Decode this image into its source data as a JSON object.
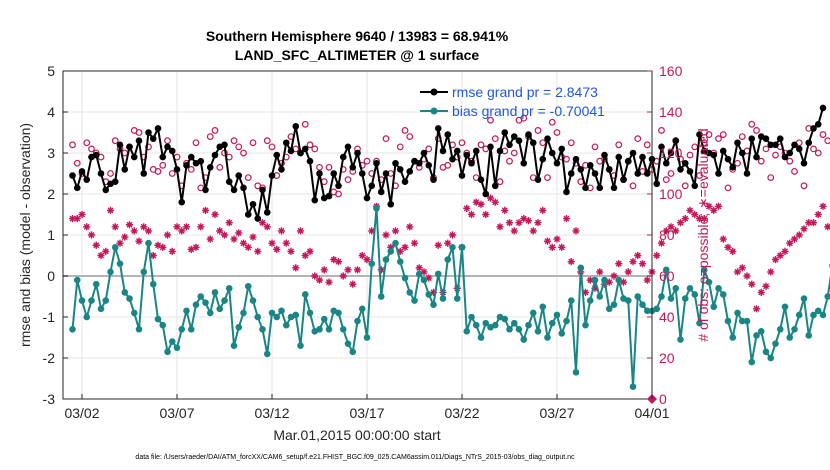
{
  "chart_data": {
    "type": "line",
    "title": "Southern Hemisphere 9640 / 13983 = 68.941%",
    "subtitle": "LAND_SFC_ALTIMETER @ 1 surface",
    "xlabel": "Mar.01,2015 00:00:00 start",
    "ylabel": "rmse and bias (model - observation)",
    "ylabel_right": "# of obs: o=possible; ∗=evaluated",
    "footer": "data file: /Users/raeder/DAI/ATM_forcXX/CAM6_setup/f.e21.FHIST_BGC.f09_025.CAM6assim.011/Diags_NTrS_2015-03/obs_diag_output.nc",
    "x_ticks": [
      "03/02",
      "03/07",
      "03/12",
      "03/17",
      "03/22",
      "03/27",
      "04/01"
    ],
    "x_tick_days": [
      1,
      6,
      11,
      16,
      21,
      26,
      31
    ],
    "xlim": [
      0,
      31
    ],
    "ylim": [
      -3,
      5
    ],
    "y_ticks": [
      -3,
      -2,
      -1,
      0,
      1,
      2,
      3,
      4,
      5
    ],
    "y_tick_labels": [
      "-3",
      "-2",
      "-1",
      "0",
      "1",
      "2",
      "3",
      "4",
      "5"
    ],
    "ylim_right": [
      0,
      160
    ],
    "y_ticks_right": [
      0,
      20,
      40,
      60,
      80,
      100,
      120,
      140,
      160
    ],
    "y_tick_labels_right": [
      "0",
      "20",
      "40",
      "60",
      "80",
      "100",
      "120",
      "140",
      "160"
    ],
    "grid": true,
    "legend": "top-right",
    "x_step_days": 0.25,
    "series": [
      {
        "name": "rmse grand pr = 2.8473",
        "color": "#000000",
        "marker": "dot",
        "values": [
          2.45,
          2.15,
          2.55,
          2.35,
          2.9,
          2.95,
          2.5,
          2.1,
          2.25,
          2.3,
          3.2,
          2.6,
          3.15,
          2.9,
          3.3,
          2.5,
          3.5,
          3.35,
          3.6,
          2.9,
          3.15,
          3.05,
          2.6,
          1.8,
          2.7,
          2.9,
          2.75,
          2.8,
          2.1,
          2.65,
          2.95,
          3.15,
          3.2,
          2.3,
          2.1,
          2.45,
          2.15,
          1.5,
          1.75,
          1.4,
          2.1,
          1.55,
          2.45,
          2.95,
          2.6,
          3.25,
          3.05,
          3.65,
          3.0,
          3.1,
          2.8,
          1.85,
          2.5,
          1.9,
          1.95,
          2.5,
          2.2,
          2.9,
          3.15,
          2.65,
          3.0,
          2.5,
          1.9,
          2.2,
          2.75,
          2.05,
          2.5,
          1.75,
          2.75,
          2.6,
          2.3,
          2.55,
          2.8,
          2.75,
          3.0,
          2.7,
          2.35,
          3.6,
          3.05,
          3.45,
          2.85,
          3.05,
          2.45,
          2.95,
          2.75,
          3.05,
          2.35,
          2.0,
          3.15,
          2.2,
          3.05,
          3.5,
          3.2,
          3.4,
          3.3,
          2.75,
          3.45,
          3.25,
          2.35,
          2.85,
          3.35,
          3.0,
          2.75,
          3.1,
          2.05,
          2.5,
          2.85,
          2.6,
          2.15,
          2.7,
          2.5,
          2.15,
          2.95,
          2.6,
          2.15,
          2.9,
          2.35,
          2.8,
          3.0,
          2.5,
          2.9,
          2.5,
          2.85,
          2.25,
          3.15,
          2.75,
          3.0,
          3.3,
          2.6,
          2.75,
          2.55,
          2.2,
          3.45,
          3.05,
          3.0,
          2.95,
          2.5,
          3.05,
          2.85,
          2.65,
          3.25,
          3.0,
          2.5,
          3.35,
          2.9,
          3.4,
          3.35,
          3.2,
          3.2,
          3.35,
          2.9,
          3.0,
          3.2,
          3.1,
          2.75,
          3.25,
          3.6,
          3.7,
          4.1
        ]
      },
      {
        "name": "bias grand pr = -0.70041",
        "color": "#1a8585",
        "marker": "dot",
        "values": [
          -1.3,
          -0.1,
          -0.6,
          -1.0,
          -0.6,
          -0.2,
          -0.8,
          -0.6,
          0.1,
          0.7,
          0.3,
          -0.4,
          -0.55,
          -0.9,
          -1.3,
          0.1,
          0.8,
          -0.2,
          -1.05,
          -1.2,
          -1.85,
          -1.6,
          -1.75,
          -1.3,
          -0.85,
          -1.3,
          -0.7,
          -0.5,
          -0.65,
          -0.9,
          -0.4,
          -0.8,
          -0.6,
          -0.3,
          -1.7,
          -1.25,
          -0.9,
          -0.25,
          -0.6,
          -1.0,
          -1.3,
          -1.9,
          -0.9,
          -1.0,
          -0.85,
          -1.2,
          -1.0,
          -0.95,
          -1.7,
          -0.45,
          -0.9,
          -1.35,
          -1.3,
          -1.05,
          -1.3,
          -0.85,
          -0.9,
          -1.3,
          -1.65,
          -1.85,
          -1.1,
          -0.8,
          -1.5,
          0.3,
          1.65,
          -0.5,
          0.4,
          0.6,
          0.8,
          0.35,
          -0.05,
          -0.4,
          -0.6,
          0.05,
          -0.1,
          -0.45,
          -0.7,
          0.05,
          -0.55,
          0.4,
          0.7,
          -0.55,
          0.7,
          -1.35,
          -1.0,
          -1.2,
          -1.5,
          -1.15,
          -1.25,
          -1.2,
          -1.0,
          -1.05,
          -1.3,
          -1.15,
          -1.3,
          -1.55,
          -1.2,
          -0.9,
          -1.35,
          -0.75,
          -1.5,
          -1.15,
          -0.95,
          -1.4,
          -1.1,
          -0.6,
          -2.35,
          0.2,
          -1.2,
          -0.6,
          -0.1,
          -0.5,
          -0.1,
          -0.8,
          -0.7,
          -0.1,
          -0.55,
          -0.6,
          -2.7,
          -0.5,
          -0.7,
          -0.85,
          -0.85,
          -0.8,
          -0.5,
          0.15,
          -0.55,
          -0.3,
          -1.55,
          -0.55,
          -0.3,
          -0.45,
          -1.15,
          0.15,
          -0.15,
          -0.75,
          -0.3,
          -0.45,
          -1.1,
          -1.5,
          -0.9,
          -1.1,
          -1.1,
          -2.1,
          -1.45,
          -1.35,
          -1.85,
          -2.0,
          -1.65,
          -1.3,
          -0.75,
          -1.5,
          -1.3,
          -0.95,
          -0.55,
          -1.45,
          -0.95,
          -0.85,
          -0.95,
          -0.5,
          0.25,
          -0.1
        ]
      },
      {
        "name": "possible",
        "color": "#c2185b",
        "marker": "circle",
        "axis": "right",
        "values": [
          124,
          115,
          110,
          125,
          122,
          120,
          118,
          106,
          110,
          126,
          122,
          120,
          123,
          131,
          130,
          118,
          123,
          112,
          111,
          114,
          126,
          110,
          118,
          104,
          115,
          112,
          125,
          103,
          108,
          128,
          131,
          113,
          120,
          118,
          126,
          123,
          120,
          108,
          125,
          104,
          103,
          126,
          123,
          109,
          115,
          118,
          128,
          122,
          120,
          134,
          124,
          122,
          113,
          106,
          113,
          101,
          100,
          112,
          107,
          111,
          122,
          114,
          116,
          110,
          116,
          107,
          127,
          110,
          104,
          123,
          131,
          128,
          116,
          113,
          117,
          122,
          108,
          127,
          113,
          114,
          124,
          118,
          125,
          120,
          116,
          108,
          124,
          122,
          136,
          127,
          106,
          121,
          116,
          120,
          136,
          137,
          128,
          108,
          131,
          125,
          108,
          135,
          130,
          118,
          117,
          125,
          115,
          106,
          114,
          103,
          123,
          116,
          117,
          112,
          109,
          124,
          107,
          116,
          104,
          127,
          111,
          124,
          112,
          116,
          131,
          107,
          110,
          126,
          117,
          104,
          119,
          123,
          109,
          125,
          129,
          120,
          127,
          129,
          103,
          112,
          115,
          128,
          121,
          134,
          131,
          116,
          122,
          108,
          119,
          123,
          120,
          116,
          111,
          125,
          104,
          132,
          122,
          120,
          129,
          126
        ]
      },
      {
        "name": "evaluated",
        "color": "#c2185b",
        "marker": "asterisk",
        "axis": "right",
        "values": [
          88,
          88,
          90,
          84,
          80,
          75,
          70,
          72,
          92,
          84,
          76,
          79,
          85,
          82,
          77,
          84,
          82,
          70,
          75,
          74,
          80,
          72,
          84,
          82,
          84,
          73,
          74,
          84,
          92,
          78,
          90,
          82,
          80,
          86,
          78,
          81,
          76,
          74,
          79,
          72,
          86,
          84,
          76,
          73,
          82,
          76,
          72,
          64,
          82,
          70,
          72,
          60,
          58,
          63,
          57,
          68,
          67,
          60,
          63,
          56,
          63,
          70,
          68,
          82,
          94,
          63,
          80,
          74,
          82,
          72,
          74,
          84,
          76,
          64,
          62,
          59,
          52,
          75,
          52,
          76,
          80,
          54,
          74,
          93,
          90,
          96,
          95,
          90,
          98,
          96,
          84,
          92,
          86,
          82,
          86,
          88,
          87,
          82,
          86,
          92,
          77,
          74,
          78,
          74,
          88,
          67,
          82,
          62,
          52,
          58,
          54,
          62,
          56,
          57,
          60,
          66,
          57,
          62,
          67,
          70,
          66,
          58,
          62,
          70,
          76,
          82,
          84,
          82,
          86,
          88,
          92,
          90,
          88,
          88,
          94,
          92,
          94,
          78,
          74,
          72,
          62,
          64,
          60,
          56,
          44,
          52,
          55,
          62,
          68,
          70,
          72,
          76,
          78,
          80,
          83,
          86,
          86,
          90,
          94,
          84
        ]
      }
    ]
  }
}
